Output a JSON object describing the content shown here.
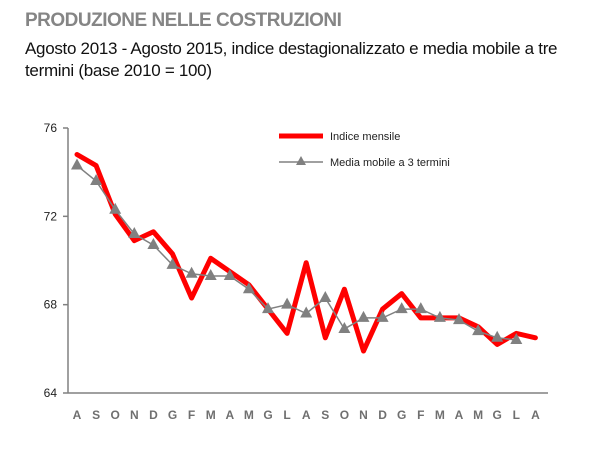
{
  "header": {
    "title": "PRODUZIONE NELLE COSTRUZIONI",
    "subtitle": "Agosto 2013 - Agosto 2015, indice destagionalizzato e media mobile a tre termini (base 2010 = 100)"
  },
  "colors": {
    "index_line": "#ff0000",
    "moving_avg_line": "#808080",
    "axis": "#808080",
    "title": "#858585"
  },
  "chart_data": {
    "type": "line",
    "title": "PRODUZIONE NELLE COSTRUZIONI",
    "subtitle": "Agosto 2013 - Agosto 2015, indice destagionalizzato e media mobile a tre termini (base 2010 = 100)",
    "xlabel": "",
    "ylabel": "",
    "ylim": [
      64,
      76
    ],
    "yticks": [
      64,
      68,
      72,
      76
    ],
    "grid": false,
    "legend_position": "top-right",
    "categories": [
      "A",
      "S",
      "O",
      "N",
      "D",
      "G",
      "F",
      "M",
      "A",
      "M",
      "G",
      "L",
      "A",
      "S",
      "O",
      "N",
      "D",
      "G",
      "F",
      "M",
      "A",
      "M",
      "G",
      "L",
      "A"
    ],
    "series": [
      {
        "name": "Indice mensile",
        "style": "thick red line",
        "values": [
          74.8,
          74.3,
          72.1,
          70.9,
          71.3,
          70.3,
          68.3,
          70.1,
          69.5,
          68.9,
          67.8,
          66.7,
          69.9,
          66.5,
          68.7,
          65.9,
          67.8,
          68.5,
          67.4,
          67.4,
          67.4,
          67.0,
          66.2,
          66.7,
          66.5
        ]
      },
      {
        "name": "Media mobile a 3 termini",
        "style": "thin gray line with triangle markers",
        "values": [
          74.3,
          73.6,
          72.3,
          71.2,
          70.7,
          69.8,
          69.4,
          69.3,
          69.3,
          68.7,
          67.8,
          68.0,
          67.6,
          68.3,
          66.9,
          67.4,
          67.4,
          67.8,
          67.8,
          67.4,
          67.3,
          66.8,
          66.5,
          66.4,
          null
        ]
      }
    ]
  },
  "legend": {
    "items": [
      {
        "label": "Indice mensile"
      },
      {
        "label": "Media mobile a 3 termini"
      }
    ]
  }
}
